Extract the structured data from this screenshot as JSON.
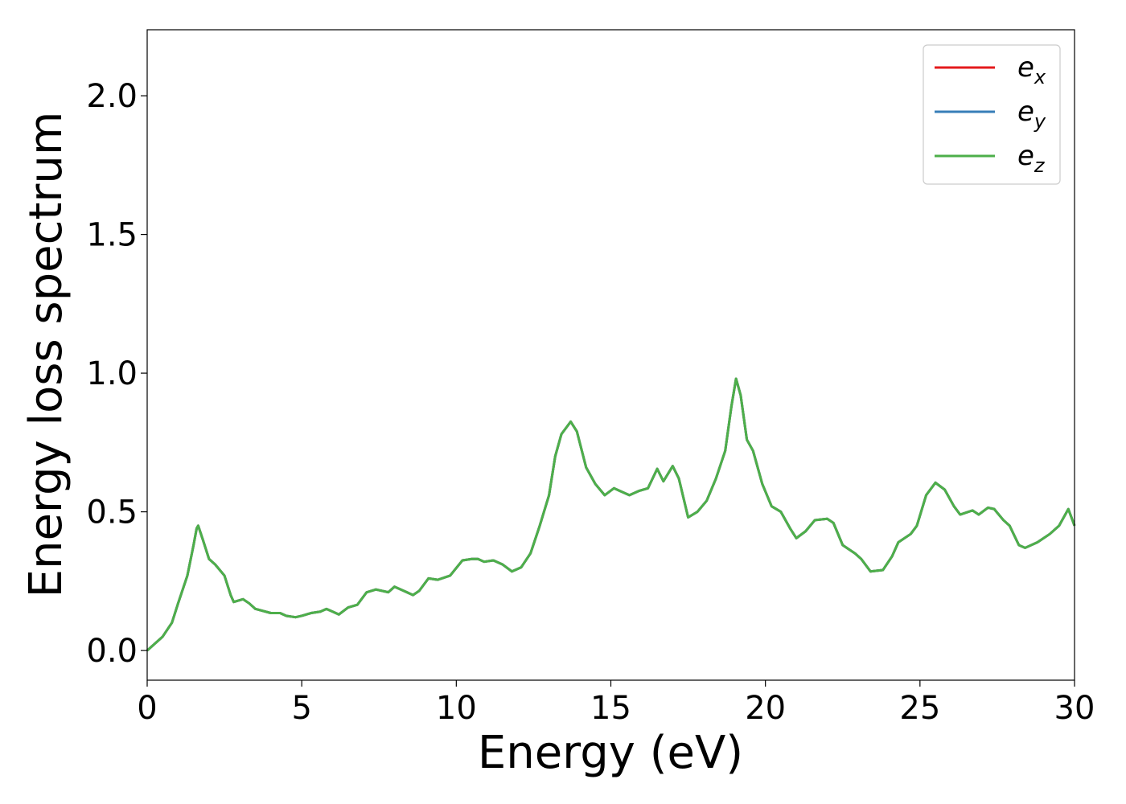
{
  "chart_data": {
    "type": "line",
    "xlabel": "Energy (eV)",
    "ylabel": "Energy loss spectrum",
    "xlim": [
      0,
      30
    ],
    "ylim": [
      -0.107,
      2.238
    ],
    "xticks": [
      0,
      5,
      10,
      15,
      20,
      25,
      30
    ],
    "yticks": [
      {
        "value": 0,
        "label": "0.0"
      },
      0.5,
      {
        "value": 1,
        "label": "1.0"
      },
      1.5,
      {
        "value": 2,
        "label": "2.0"
      }
    ],
    "legend": "upper right",
    "x": [
      0,
      0.5,
      0.8,
      1.0,
      1.3,
      1.5,
      1.6,
      1.65,
      1.8,
      2.0,
      2.2,
      2.5,
      2.7,
      2.8,
      3.1,
      3.3,
      3.5,
      4.0,
      4.3,
      4.5,
      4.8,
      5.0,
      5.3,
      5.6,
      5.8,
      6.0,
      6.2,
      6.5,
      6.8,
      7.1,
      7.4,
      7.8,
      8.0,
      8.3,
      8.6,
      8.8,
      9.1,
      9.4,
      9.8,
      10.2,
      10.5,
      10.7,
      10.9,
      11.2,
      11.5,
      11.8,
      12.1,
      12.4,
      12.7,
      13.0,
      13.2,
      13.4,
      13.7,
      13.9,
      14.2,
      14.5,
      14.8,
      15.1,
      15.3,
      15.6,
      15.9,
      16.2,
      16.5,
      16.7,
      17.0,
      17.2,
      17.5,
      17.8,
      18.1,
      18.4,
      18.7,
      18.9,
      19.05,
      19.2,
      19.4,
      19.6,
      19.9,
      20.2,
      20.5,
      20.8,
      21.0,
      21.3,
      21.6,
      22.0,
      22.2,
      22.5,
      22.9,
      23.1,
      23.4,
      23.8,
      24.1,
      24.3,
      24.7,
      24.9,
      25.2,
      25.5,
      25.8,
      26.1,
      26.3,
      26.7,
      26.9,
      27.2,
      27.4,
      27.7,
      27.9,
      28.2,
      28.4,
      28.8,
      29.2,
      29.5,
      29.8,
      30.0
    ],
    "series": [
      {
        "name": "e_x",
        "color": "#e41a1c",
        "values": [
          0,
          0.05,
          0.1,
          0.17,
          0.27,
          0.38,
          0.44,
          0.45,
          0.4,
          0.33,
          0.31,
          0.27,
          0.2,
          0.175,
          0.185,
          0.17,
          0.15,
          0.135,
          0.135,
          0.125,
          0.12,
          0.125,
          0.135,
          0.14,
          0.15,
          0.14,
          0.13,
          0.155,
          0.165,
          0.21,
          0.22,
          0.21,
          0.23,
          0.215,
          0.2,
          0.215,
          0.26,
          0.255,
          0.27,
          0.325,
          0.33,
          0.33,
          0.32,
          0.325,
          0.31,
          0.285,
          0.3,
          0.35,
          0.45,
          0.56,
          0.7,
          0.78,
          0.825,
          0.79,
          0.66,
          0.6,
          0.56,
          0.585,
          0.575,
          0.56,
          0.575,
          0.585,
          0.655,
          0.61,
          0.665,
          0.62,
          0.48,
          0.5,
          0.54,
          0.62,
          0.72,
          0.88,
          0.98,
          0.92,
          0.76,
          0.72,
          0.6,
          0.52,
          0.5,
          0.44,
          0.405,
          0.43,
          0.47,
          0.475,
          0.46,
          0.38,
          0.35,
          0.33,
          0.285,
          0.29,
          0.34,
          0.39,
          0.42,
          0.45,
          0.56,
          0.605,
          0.58,
          0.52,
          0.49,
          0.505,
          0.49,
          0.515,
          0.51,
          0.47,
          0.45,
          0.38,
          0.37,
          0.39,
          0.42,
          0.45,
          0.51,
          0.45
        ]
      },
      {
        "name": "e_y",
        "color": "#377eb8",
        "values": [
          0,
          0.05,
          0.1,
          0.17,
          0.27,
          0.38,
          0.44,
          0.45,
          0.4,
          0.33,
          0.31,
          0.27,
          0.2,
          0.175,
          0.185,
          0.17,
          0.15,
          0.135,
          0.135,
          0.125,
          0.12,
          0.125,
          0.135,
          0.14,
          0.15,
          0.14,
          0.13,
          0.155,
          0.165,
          0.21,
          0.22,
          0.21,
          0.23,
          0.215,
          0.2,
          0.215,
          0.26,
          0.255,
          0.27,
          0.325,
          0.33,
          0.33,
          0.32,
          0.325,
          0.31,
          0.285,
          0.3,
          0.35,
          0.45,
          0.56,
          0.7,
          0.78,
          0.825,
          0.79,
          0.66,
          0.6,
          0.56,
          0.585,
          0.575,
          0.56,
          0.575,
          0.585,
          0.655,
          0.61,
          0.665,
          0.62,
          0.48,
          0.5,
          0.54,
          0.62,
          0.72,
          0.88,
          0.98,
          0.92,
          0.76,
          0.72,
          0.6,
          0.52,
          0.5,
          0.44,
          0.405,
          0.43,
          0.47,
          0.475,
          0.46,
          0.38,
          0.35,
          0.33,
          0.285,
          0.29,
          0.34,
          0.39,
          0.42,
          0.45,
          0.56,
          0.605,
          0.58,
          0.52,
          0.49,
          0.505,
          0.49,
          0.515,
          0.51,
          0.47,
          0.45,
          0.38,
          0.37,
          0.39,
          0.42,
          0.45,
          0.51,
          0.45
        ]
      },
      {
        "name": "e_z",
        "color": "#4daf4a",
        "values": [
          0,
          0.05,
          0.1,
          0.17,
          0.27,
          0.38,
          0.44,
          0.45,
          0.4,
          0.33,
          0.31,
          0.27,
          0.2,
          0.175,
          0.185,
          0.17,
          0.15,
          0.135,
          0.135,
          0.125,
          0.12,
          0.125,
          0.135,
          0.14,
          0.15,
          0.14,
          0.13,
          0.155,
          0.165,
          0.21,
          0.22,
          0.21,
          0.23,
          0.215,
          0.2,
          0.215,
          0.26,
          0.255,
          0.27,
          0.325,
          0.33,
          0.33,
          0.32,
          0.325,
          0.31,
          0.285,
          0.3,
          0.35,
          0.45,
          0.56,
          0.7,
          0.78,
          0.825,
          0.79,
          0.66,
          0.6,
          0.56,
          0.585,
          0.575,
          0.56,
          0.575,
          0.585,
          0.655,
          0.61,
          0.665,
          0.62,
          0.48,
          0.5,
          0.54,
          0.62,
          0.72,
          0.88,
          0.98,
          0.92,
          0.76,
          0.72,
          0.6,
          0.52,
          0.5,
          0.44,
          0.405,
          0.43,
          0.47,
          0.475,
          0.46,
          0.38,
          0.35,
          0.33,
          0.285,
          0.29,
          0.34,
          0.39,
          0.42,
          0.45,
          0.56,
          0.605,
          0.58,
          0.52,
          0.49,
          0.505,
          0.49,
          0.515,
          0.51,
          0.47,
          0.45,
          0.38,
          0.37,
          0.39,
          0.42,
          0.45,
          0.51,
          0.45
        ]
      }
    ]
  }
}
